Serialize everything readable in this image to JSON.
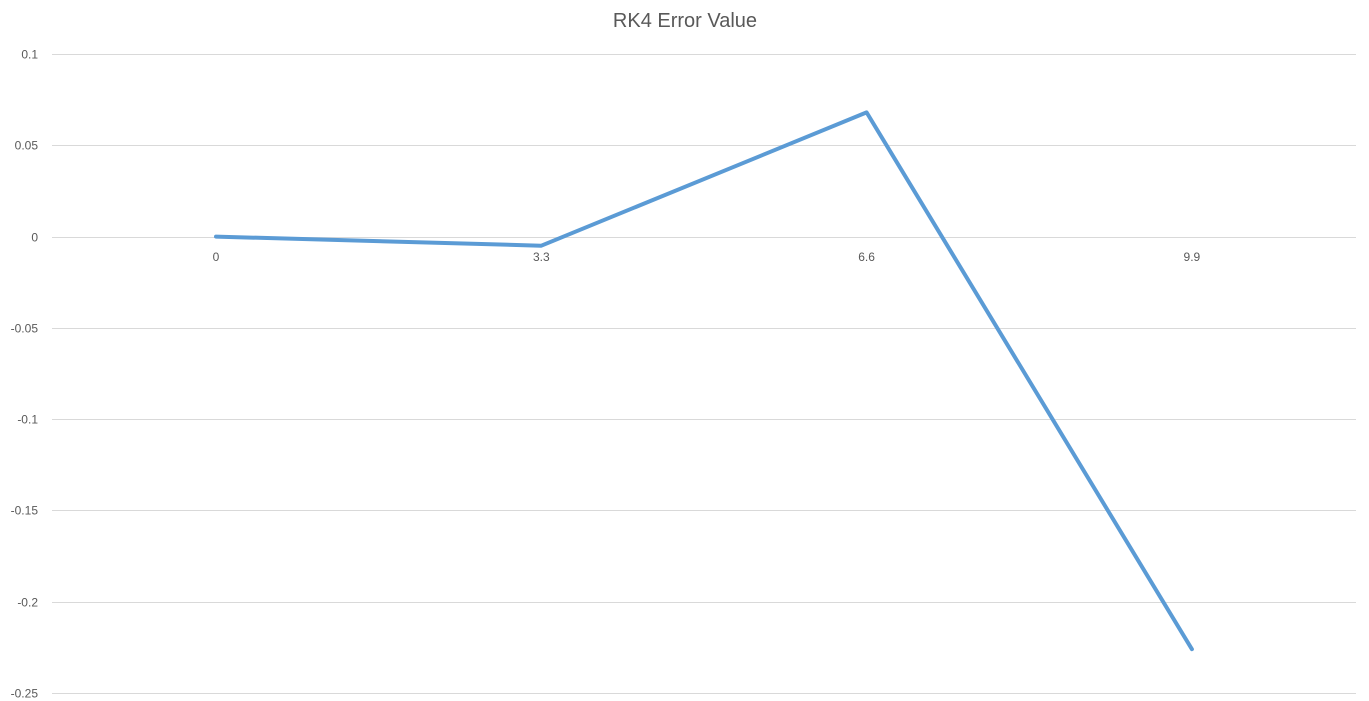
{
  "chart_data": {
    "type": "line",
    "title": "RK4 Error Value",
    "categories": [
      "0",
      "3.3",
      "6.6",
      "9.9"
    ],
    "series": [
      {
        "values": [
          0,
          -0.005,
          0.068,
          -0.226
        ],
        "color": "#5b9bd5"
      }
    ],
    "y_ticks": [
      "0.1",
      "0.05",
      "0",
      "-0.05",
      "-0.1",
      "-0.15",
      "-0.2",
      "-0.25"
    ],
    "y_tick_values": [
      0.1,
      0.05,
      0,
      -0.05,
      -0.1,
      -0.15,
      -0.2,
      -0.25
    ],
    "ylim": [
      -0.25,
      0.1
    ],
    "grid": true,
    "legend": "none",
    "xlabel": "",
    "ylabel": ""
  }
}
